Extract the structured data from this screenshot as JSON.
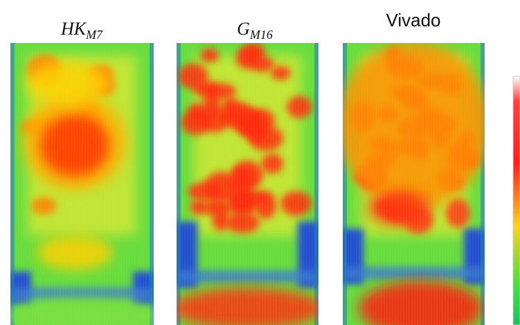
{
  "panels": [
    {
      "label": "HK",
      "subscript": "M7"
    },
    {
      "label": "G",
      "subscript": "M16"
    },
    {
      "label": "Vivado"
    }
  ]
}
